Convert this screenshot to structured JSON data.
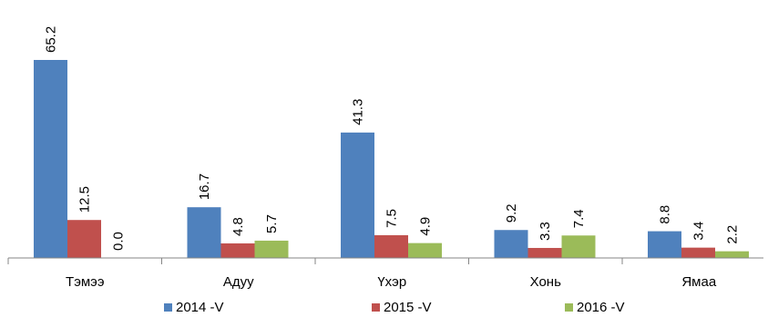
{
  "chart_data": {
    "type": "bar",
    "title": "",
    "xlabel": "",
    "ylabel": "",
    "ylim": [
      0,
      70
    ],
    "grid": false,
    "legend_position": "bottom",
    "categories": [
      "Тэмээ",
      "Адуу",
      "Үхэр",
      "Хонь",
      "Ямаа"
    ],
    "series": [
      {
        "name": "2014 -V",
        "color": "#4f81bd",
        "values": [
          65.2,
          16.7,
          41.3,
          9.2,
          8.8
        ],
        "labels": [
          "65.2",
          "16.7",
          "41.3",
          "9.2",
          "8.8"
        ]
      },
      {
        "name": "2015 -V",
        "color": "#c0504d",
        "values": [
          12.5,
          4.8,
          7.5,
          3.3,
          3.4
        ],
        "labels": [
          "12.5",
          "4.8",
          "7.5",
          "3.3",
          "3.4"
        ]
      },
      {
        "name": "2016 -V",
        "color": "#9bbb59",
        "values": [
          0.0,
          5.7,
          4.9,
          7.4,
          2.2
        ],
        "labels": [
          "0.0",
          "5.7",
          "4.9",
          "7.4",
          "2.2"
        ]
      }
    ]
  }
}
